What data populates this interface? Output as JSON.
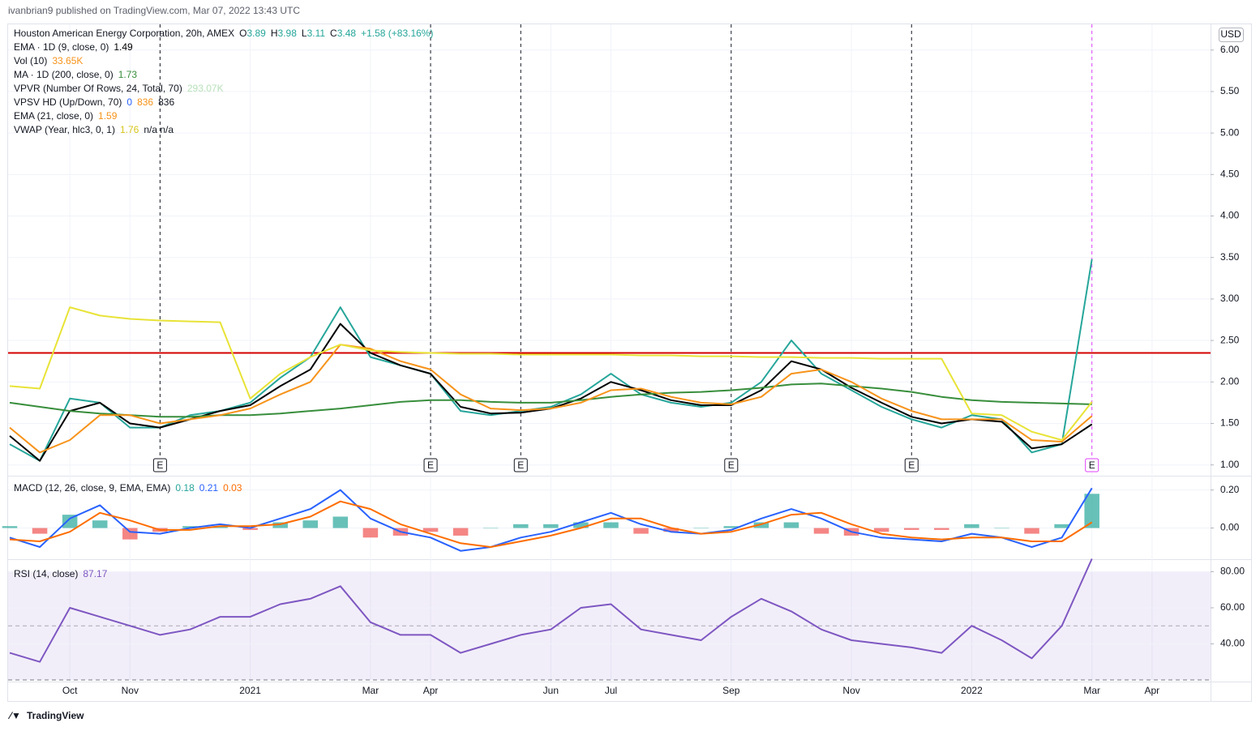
{
  "header": {
    "publisher": "ivanbrian9 published on TradingView.com, Mar 07, 2022 13:43 UTC",
    "ohlc": [
      [
        "O",
        "3.89"
      ],
      [
        "H",
        "3.98"
      ],
      [
        "L",
        "3.11"
      ],
      [
        "C",
        "3.48"
      ]
    ],
    "change": "+1.58 (+83.16%)",
    "currency": "USD",
    "brand": "TradingView"
  },
  "other_indicators": {
    "vol": {
      "name": "Vol (10)",
      "value": "33.65K"
    },
    "vpvr": {
      "name": "VPVR (Number Of Rows, 24, Total, 70)",
      "value": "293.07K"
    },
    "vpsv": {
      "name": "VPSV HD (Up/Down, 70)",
      "values": [
        "0",
        "836",
        "836"
      ]
    },
    "vwap_extra": "n/a n/a"
  },
  "chart_data": [
    {
      "type": "line",
      "categories": [
        null,
        null,
        "Oct",
        null,
        "Nov",
        null,
        null,
        null,
        "2021",
        null,
        null,
        null,
        "Mar",
        null,
        "Apr",
        null,
        null,
        null,
        "Jun",
        null,
        "Jul",
        null,
        null,
        null,
        "Sep",
        null,
        null,
        null,
        "Nov",
        null,
        null,
        null,
        "2022",
        null,
        null,
        null,
        "Mar",
        null,
        "Apr",
        null
      ],
      "series": [
        {
          "name": "Houston American Energy Corporation, 20h, AMEX",
          "color": "#26a69a",
          "values": [
            1.25,
            1.05,
            1.8,
            1.75,
            1.45,
            1.45,
            1.6,
            1.65,
            1.75,
            2.05,
            2.3,
            2.9,
            2.3,
            2.2,
            2.1,
            1.65,
            1.6,
            1.65,
            1.7,
            1.85,
            2.1,
            1.85,
            1.75,
            1.7,
            1.75,
            2.0,
            2.5,
            2.1,
            1.9,
            1.7,
            1.55,
            1.45,
            1.6,
            1.55,
            1.15,
            1.25,
            3.48,
            null,
            null,
            null
          ]
        },
        {
          "name": "EMA · 1D (9, close, 0)",
          "color": "#000000",
          "values": [
            1.35,
            1.05,
            1.65,
            1.75,
            1.5,
            1.45,
            1.55,
            1.65,
            1.72,
            1.95,
            2.15,
            2.7,
            2.35,
            2.2,
            2.1,
            1.7,
            1.62,
            1.63,
            1.68,
            1.8,
            2.0,
            1.9,
            1.78,
            1.72,
            1.72,
            1.9,
            2.25,
            2.15,
            1.93,
            1.75,
            1.58,
            1.5,
            1.55,
            1.52,
            1.2,
            1.25,
            1.49,
            null,
            null,
            null
          ]
        },
        {
          "name": "MA · 1D (200, close, 0)",
          "color": "#388e3c",
          "values": [
            1.75,
            1.7,
            1.65,
            1.62,
            1.6,
            1.58,
            1.58,
            1.6,
            1.6,
            1.62,
            1.65,
            1.68,
            1.72,
            1.76,
            1.78,
            1.78,
            1.76,
            1.75,
            1.75,
            1.78,
            1.82,
            1.85,
            1.87,
            1.88,
            1.9,
            1.93,
            1.97,
            1.98,
            1.95,
            1.92,
            1.88,
            1.82,
            1.78,
            1.76,
            1.75,
            1.74,
            1.73,
            null,
            null,
            null
          ]
        },
        {
          "name": "EMA (21, close, 0)",
          "color": "#f7931a",
          "values": [
            1.45,
            1.15,
            1.3,
            1.6,
            1.6,
            1.5,
            1.55,
            1.6,
            1.68,
            1.85,
            2.0,
            2.45,
            2.4,
            2.25,
            2.15,
            1.85,
            1.68,
            1.66,
            1.68,
            1.75,
            1.9,
            1.92,
            1.82,
            1.75,
            1.73,
            1.82,
            2.1,
            2.15,
            2.0,
            1.8,
            1.65,
            1.55,
            1.55,
            1.55,
            1.3,
            1.28,
            1.59,
            null,
            null,
            null
          ]
        },
        {
          "name": "VWAP (Year, hlc3, 0, 1)",
          "color": "#e8e337",
          "values": [
            1.95,
            1.92,
            2.9,
            2.8,
            2.76,
            2.74,
            2.73,
            2.72,
            1.8,
            2.1,
            2.3,
            2.45,
            2.38,
            2.36,
            2.35,
            2.34,
            2.34,
            2.33,
            2.33,
            2.33,
            2.33,
            2.32,
            2.32,
            2.31,
            2.31,
            2.3,
            2.3,
            2.29,
            2.29,
            2.28,
            2.28,
            2.28,
            1.62,
            1.6,
            1.4,
            1.3,
            1.76,
            null,
            null,
            null
          ]
        }
      ],
      "ylim": [
        0.87,
        6.31
      ],
      "yticks": [
        {
          "value": 1,
          "label": "1.00"
        },
        {
          "value": 1.5,
          "label": "1.50"
        },
        {
          "value": 2,
          "label": "2.00"
        },
        {
          "value": 2.5,
          "label": "2.50"
        },
        {
          "value": 3,
          "label": "3.00"
        },
        {
          "value": 3.5,
          "label": "3.50"
        },
        {
          "value": 4,
          "label": "4.00"
        },
        {
          "value": 4.5,
          "label": "4.50"
        },
        {
          "value": 5,
          "label": "5.00"
        },
        {
          "value": 5.5,
          "label": "5.50"
        },
        {
          "value": 6,
          "label": "6.00"
        }
      ],
      "hline": 2.35,
      "hline_color": "#d50000",
      "events": [
        {
          "at": 5,
          "label": "E"
        },
        {
          "at": 14,
          "label": "E"
        },
        {
          "at": 17,
          "label": "E"
        },
        {
          "at": 24,
          "label": "E"
        },
        {
          "at": 30,
          "label": "E"
        },
        {
          "at": 36,
          "label": "E",
          "color": "#e040fb"
        }
      ],
      "grid": true
    },
    {
      "type": "line",
      "title": "MACD (12, 26, close, 9, EMA, EMA)",
      "series": [
        {
          "kind": "histogram",
          "color": "#26a69a",
          "negative_color": "#ef5350",
          "values": [
            0.01,
            -0.03,
            0.07,
            0.04,
            -0.06,
            -0.02,
            0.01,
            0.01,
            -0.01,
            0.03,
            0.04,
            0.06,
            -0.05,
            -0.04,
            -0.02,
            -0.04,
            0.0,
            0.02,
            0.02,
            0.03,
            0.03,
            -0.03,
            -0.02,
            0.0,
            0.01,
            0.03,
            0.03,
            -0.03,
            -0.04,
            -0.02,
            -0.01,
            -0.01,
            0.02,
            0.0,
            -0.03,
            0.02,
            0.18,
            null,
            null,
            null
          ]
        },
        {
          "color": "#2962ff",
          "values": [
            -0.05,
            -0.1,
            0.05,
            0.12,
            -0.02,
            -0.03,
            0.0,
            0.02,
            0.0,
            0.05,
            0.1,
            0.2,
            0.05,
            -0.02,
            -0.05,
            -0.12,
            -0.1,
            -0.05,
            -0.02,
            0.03,
            0.08,
            0.02,
            -0.02,
            -0.03,
            -0.01,
            0.05,
            0.1,
            0.05,
            -0.02,
            -0.05,
            -0.06,
            -0.07,
            -0.03,
            -0.05,
            -0.1,
            -0.05,
            0.21,
            null,
            null,
            null
          ]
        },
        {
          "color": "#ff6d00",
          "values": [
            -0.06,
            -0.07,
            -0.02,
            0.08,
            0.04,
            -0.01,
            -0.01,
            0.01,
            0.01,
            0.02,
            0.06,
            0.14,
            0.1,
            0.02,
            -0.03,
            -0.08,
            -0.1,
            -0.07,
            -0.04,
            0.0,
            0.05,
            0.05,
            0.0,
            -0.03,
            -0.02,
            0.02,
            0.07,
            0.08,
            0.02,
            -0.03,
            -0.05,
            -0.06,
            -0.05,
            -0.05,
            -0.07,
            -0.07,
            0.03,
            null,
            null,
            null
          ]
        }
      ],
      "ylim": [
        -0.164,
        0.271
      ],
      "yticks": [
        {
          "value": 0.2,
          "label": "0.20"
        },
        {
          "value": 0,
          "label": "0.00"
        }
      ],
      "grid": true
    },
    {
      "type": "line",
      "title": "RSI (14, close)",
      "series": [
        {
          "color": "#7e57c2",
          "values": [
            35,
            30,
            60,
            55,
            50,
            45,
            48,
            55,
            55,
            62,
            65,
            72,
            52,
            45,
            45,
            35,
            40,
            45,
            48,
            60,
            62,
            48,
            45,
            42,
            55,
            65,
            58,
            48,
            42,
            40,
            38,
            35,
            50,
            42,
            32,
            50,
            87.17,
            null,
            null,
            null
          ]
        }
      ],
      "ylim": [
        19.1,
        86.5
      ],
      "yticks": [
        {
          "value": 80,
          "label": "80.00"
        },
        {
          "value": 60,
          "label": "60.00"
        },
        {
          "value": 40,
          "label": "40.00"
        }
      ],
      "band": [
        20,
        80
      ],
      "midline": 50,
      "band_color": "#7e57c2",
      "grid": true
    }
  ]
}
